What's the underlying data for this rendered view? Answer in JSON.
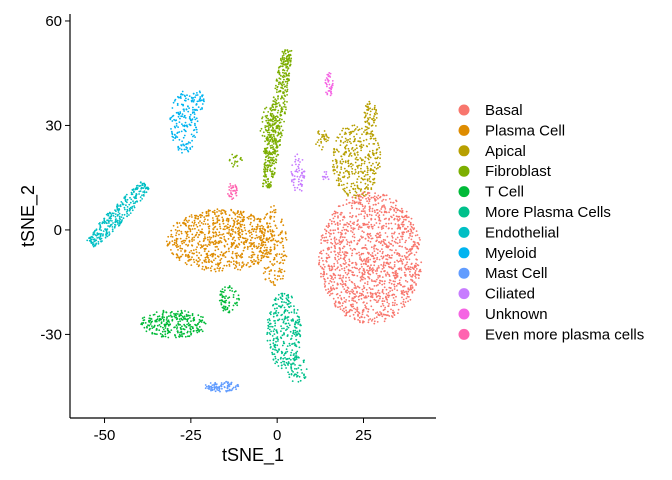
{
  "chart_data": {
    "type": "scatter",
    "title": "",
    "xlabel": "tSNE_1",
    "ylabel": "tSNE_2",
    "xlim": [
      -60,
      46
    ],
    "ylim": [
      -54,
      62
    ],
    "xticks": [
      -50,
      -25,
      0,
      25
    ],
    "xtick_labels": [
      "-50",
      "-25",
      "0",
      "25"
    ],
    "yticks": [
      -30,
      0,
      30,
      60
    ],
    "ytick_labels": [
      "-30",
      "0",
      "30",
      "60"
    ],
    "grid": false,
    "legend_position": "right",
    "series": [
      {
        "name": "Basal",
        "color": "#F8766D",
        "regions": [
          {
            "cx": 27,
            "cy": -8,
            "rx": 15,
            "ry": 19,
            "n": 1400
          }
        ]
      },
      {
        "name": "Plasma Cell",
        "color": "#DE8C00",
        "regions": [
          {
            "cx": -16,
            "cy": -3,
            "rx": 16,
            "ry": 9,
            "n": 800
          },
          {
            "cx": -1,
            "cy": -5,
            "rx": 4,
            "ry": 12,
            "n": 150
          }
        ]
      },
      {
        "name": "Apical",
        "color": "#B79F00",
        "regions": [
          {
            "cx": 23,
            "cy": 20,
            "rx": 7,
            "ry": 11,
            "n": 350
          },
          {
            "cx": 27,
            "cy": 32,
            "rx": 2,
            "ry": 5,
            "n": 60
          },
          {
            "cx": 13,
            "cy": 26,
            "rx": 2,
            "ry": 3,
            "n": 30
          }
        ]
      },
      {
        "name": "Fibroblast",
        "color": "#7CAE00",
        "regions": [
          {
            "x1": -3,
            "y1": 12,
            "x2": 3,
            "y2": 52,
            "w": 2.2,
            "n": 450
          },
          {
            "cx": -2,
            "cy": 28,
            "rx": 3,
            "ry": 8,
            "n": 120
          },
          {
            "cx": -12,
            "cy": 20,
            "rx": 2,
            "ry": 2,
            "n": 20
          }
        ]
      },
      {
        "name": "T Cell",
        "color": "#00BA38",
        "regions": [
          {
            "cx": -30,
            "cy": -27,
            "rx": 10,
            "ry": 4,
            "n": 280
          },
          {
            "cx": -14,
            "cy": -20,
            "rx": 3,
            "ry": 4,
            "n": 70
          }
        ]
      },
      {
        "name": "More Plasma Cells",
        "color": "#00C08B",
        "regions": [
          {
            "cx": 2,
            "cy": -29,
            "rx": 5,
            "ry": 11,
            "n": 300
          },
          {
            "cx": 6,
            "cy": -40,
            "rx": 3,
            "ry": 4,
            "n": 50
          }
        ]
      },
      {
        "name": "Endothelial",
        "color": "#00BFC4",
        "regions": [
          {
            "x1": -54,
            "y1": -4,
            "x2": -38,
            "y2": 13,
            "w": 2.5,
            "n": 300
          }
        ]
      },
      {
        "name": "Myeloid",
        "color": "#00B4F0",
        "regions": [
          {
            "cx": -27,
            "cy": 31,
            "rx": 4,
            "ry": 9,
            "n": 160
          },
          {
            "cx": -23,
            "cy": 37,
            "rx": 2,
            "ry": 3,
            "n": 40
          }
        ]
      },
      {
        "name": "Mast Cell",
        "color": "#619CFF",
        "regions": [
          {
            "cx": -16,
            "cy": -45,
            "rx": 5,
            "ry": 1.5,
            "n": 90
          }
        ]
      },
      {
        "name": "Ciliated",
        "color": "#C77CFF",
        "regions": [
          {
            "cx": 6,
            "cy": 16,
            "rx": 2,
            "ry": 6,
            "n": 60
          },
          {
            "cx": 14,
            "cy": 15,
            "rx": 1,
            "ry": 2,
            "n": 10
          }
        ]
      },
      {
        "name": "Unknown",
        "color": "#F564E3",
        "regions": [
          {
            "cx": 15,
            "cy": 42,
            "rx": 1.2,
            "ry": 4,
            "n": 40
          }
        ]
      },
      {
        "name": "Even more plasma cells",
        "color": "#FF64B0",
        "regions": [
          {
            "cx": -13,
            "cy": 11,
            "rx": 1.5,
            "ry": 2.5,
            "n": 35
          }
        ]
      }
    ]
  }
}
